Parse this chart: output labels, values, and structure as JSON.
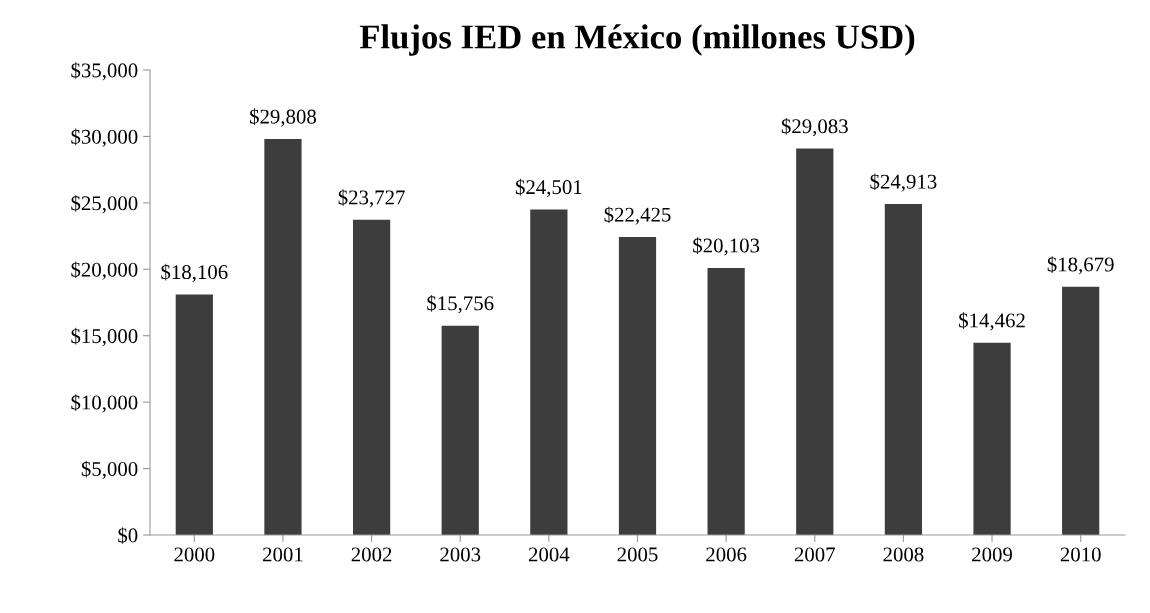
{
  "chart_data": {
    "type": "bar",
    "title": "Flujos IED en México (millones USD)",
    "categories": [
      "2000",
      "2001",
      "2002",
      "2003",
      "2004",
      "2005",
      "2006",
      "2007",
      "2008",
      "2009",
      "2010"
    ],
    "values": [
      18106,
      29808,
      23727,
      15756,
      24501,
      22425,
      20103,
      29083,
      24913,
      14462,
      18679
    ],
    "value_labels": [
      "$18,106",
      "$29,808",
      "$23,727",
      "$15,756",
      "$24,501",
      "$22,425",
      "$20,103",
      "$29,083",
      "$24,913",
      "$14,462",
      "$18,679"
    ],
    "color": "#3d3d3d",
    "ylim": [
      0,
      35000
    ],
    "yticks": [
      {
        "value": 0,
        "label": "$0"
      },
      {
        "value": 5000,
        "label": "$5,000"
      },
      {
        "value": 10000,
        "label": "$10,000"
      },
      {
        "value": 15000,
        "label": "$15,000"
      },
      {
        "value": 20000,
        "label": "$20,000"
      },
      {
        "value": 25000,
        "label": "$25,000"
      },
      {
        "value": 30000,
        "label": "$30,000"
      },
      {
        "value": 35000,
        "label": "$35,000"
      }
    ],
    "grid": false,
    "legend": false
  }
}
